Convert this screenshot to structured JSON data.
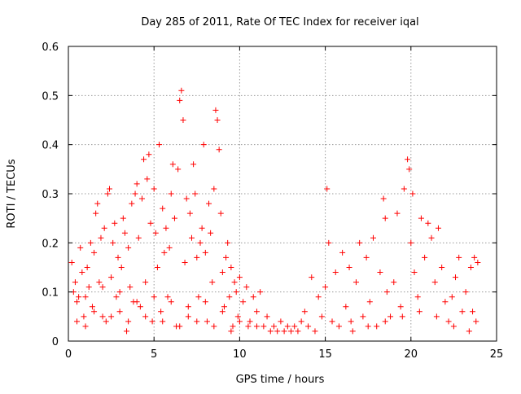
{
  "chart_data": {
    "type": "scatter",
    "title": "Day 285 of 2011, Rate Of TEC Index for receiver iqal",
    "xlabel": "GPS time / hours",
    "ylabel": "ROTI / TECUs",
    "xlim": [
      0,
      25
    ],
    "ylim": [
      0,
      0.6
    ],
    "x_ticks": [
      "0",
      "5",
      "10",
      "15",
      "20",
      "25"
    ],
    "y_ticks": [
      "0",
      "0.1",
      "0.2",
      "0.3",
      "0.4",
      "0.5",
      "0.6"
    ],
    "x_tick_values": [
      0,
      5,
      10,
      15,
      20,
      25
    ],
    "y_tick_values": [
      0,
      0.1,
      0.2,
      0.3,
      0.4,
      0.5,
      0.6
    ],
    "grid": true,
    "marker": "+",
    "marker_color": "#ff0000",
    "series": [
      {
        "points": [
          [
            0.2,
            0.16
          ],
          [
            0.3,
            0.1
          ],
          [
            0.4,
            0.12
          ],
          [
            0.5,
            0.08
          ],
          [
            0.6,
            0.09
          ],
          [
            0.7,
            0.19
          ],
          [
            0.8,
            0.14
          ],
          [
            0.9,
            0.05
          ],
          [
            1.0,
            0.03
          ],
          [
            1.1,
            0.15
          ],
          [
            1.2,
            0.11
          ],
          [
            1.3,
            0.2
          ],
          [
            1.4,
            0.07
          ],
          [
            1.5,
            0.18
          ],
          [
            1.6,
            0.26
          ],
          [
            1.7,
            0.28
          ],
          [
            1.8,
            0.12
          ],
          [
            1.9,
            0.21
          ],
          [
            2.0,
            0.05
          ],
          [
            2.1,
            0.23
          ],
          [
            2.2,
            0.04
          ],
          [
            2.3,
            0.3
          ],
          [
            2.4,
            0.31
          ],
          [
            2.5,
            0.13
          ],
          [
            2.6,
            0.2
          ],
          [
            2.7,
            0.24
          ],
          [
            2.8,
            0.09
          ],
          [
            2.9,
            0.17
          ],
          [
            3.0,
            0.06
          ],
          [
            3.1,
            0.15
          ],
          [
            3.2,
            0.25
          ],
          [
            3.3,
            0.22
          ],
          [
            3.4,
            0.02
          ],
          [
            3.5,
            0.19
          ],
          [
            3.6,
            0.11
          ],
          [
            3.7,
            0.28
          ],
          [
            3.8,
            0.08
          ],
          [
            3.9,
            0.3
          ],
          [
            4.0,
            0.32
          ],
          [
            4.1,
            0.21
          ],
          [
            4.2,
            0.07
          ],
          [
            4.3,
            0.29
          ],
          [
            4.4,
            0.37
          ],
          [
            4.5,
            0.12
          ],
          [
            4.6,
            0.33
          ],
          [
            4.7,
            0.38
          ],
          [
            4.8,
            0.24
          ],
          [
            4.9,
            0.04
          ],
          [
            5.0,
            0.31
          ],
          [
            5.1,
            0.22
          ],
          [
            5.2,
            0.15
          ],
          [
            5.3,
            0.4
          ],
          [
            5.4,
            0.06
          ],
          [
            5.5,
            0.27
          ],
          [
            5.6,
            0.18
          ],
          [
            5.7,
            0.23
          ],
          [
            5.8,
            0.09
          ],
          [
            5.9,
            0.19
          ],
          [
            6.0,
            0.3
          ],
          [
            6.1,
            0.36
          ],
          [
            6.2,
            0.25
          ],
          [
            6.3,
            0.03
          ],
          [
            6.4,
            0.35
          ],
          [
            6.5,
            0.49
          ],
          [
            6.6,
            0.51
          ],
          [
            6.7,
            0.45
          ],
          [
            6.8,
            0.16
          ],
          [
            6.9,
            0.29
          ],
          [
            7.0,
            0.05
          ],
          [
            7.1,
            0.26
          ],
          [
            7.2,
            0.21
          ],
          [
            7.3,
            0.36
          ],
          [
            7.4,
            0.3
          ],
          [
            7.5,
            0.17
          ],
          [
            7.6,
            0.09
          ],
          [
            7.7,
            0.2
          ],
          [
            7.8,
            0.23
          ],
          [
            7.9,
            0.4
          ],
          [
            8.0,
            0.18
          ],
          [
            8.1,
            0.04
          ],
          [
            8.2,
            0.28
          ],
          [
            8.3,
            0.22
          ],
          [
            8.4,
            0.12
          ],
          [
            8.5,
            0.31
          ],
          [
            8.6,
            0.47
          ],
          [
            8.7,
            0.45
          ],
          [
            8.8,
            0.39
          ],
          [
            8.9,
            0.26
          ],
          [
            9.0,
            0.14
          ],
          [
            9.1,
            0.07
          ],
          [
            9.2,
            0.17
          ],
          [
            9.3,
            0.2
          ],
          [
            9.4,
            0.09
          ],
          [
            9.5,
            0.15
          ],
          [
            9.6,
            0.03
          ],
          [
            9.7,
            0.12
          ],
          [
            9.8,
            0.1
          ],
          [
            9.9,
            0.05
          ],
          [
            10.0,
            0.13
          ],
          [
            10.2,
            0.08
          ],
          [
            10.4,
            0.11
          ],
          [
            10.6,
            0.04
          ],
          [
            10.8,
            0.09
          ],
          [
            11.0,
            0.06
          ],
          [
            11.2,
            0.1
          ],
          [
            11.4,
            0.03
          ],
          [
            11.6,
            0.05
          ],
          [
            11.8,
            0.02
          ],
          [
            12.0,
            0.03
          ],
          [
            12.2,
            0.02
          ],
          [
            12.4,
            0.04
          ],
          [
            12.6,
            0.02
          ],
          [
            12.8,
            0.03
          ],
          [
            13.0,
            0.02
          ],
          [
            13.2,
            0.03
          ],
          [
            13.4,
            0.02
          ],
          [
            13.6,
            0.04
          ],
          [
            13.8,
            0.06
          ],
          [
            14.0,
            0.03
          ],
          [
            14.2,
            0.13
          ],
          [
            14.4,
            0.02
          ],
          [
            14.6,
            0.09
          ],
          [
            14.8,
            0.05
          ],
          [
            15.0,
            0.11
          ],
          [
            15.1,
            0.31
          ],
          [
            15.2,
            0.2
          ],
          [
            15.4,
            0.04
          ],
          [
            15.6,
            0.14
          ],
          [
            15.8,
            0.03
          ],
          [
            16.0,
            0.18
          ],
          [
            16.2,
            0.07
          ],
          [
            16.4,
            0.15
          ],
          [
            16.6,
            0.02
          ],
          [
            16.8,
            0.12
          ],
          [
            17.0,
            0.2
          ],
          [
            17.2,
            0.05
          ],
          [
            17.4,
            0.17
          ],
          [
            17.6,
            0.08
          ],
          [
            17.8,
            0.21
          ],
          [
            18.0,
            0.03
          ],
          [
            18.2,
            0.14
          ],
          [
            18.4,
            0.29
          ],
          [
            18.5,
            0.25
          ],
          [
            18.6,
            0.1
          ],
          [
            18.8,
            0.05
          ],
          [
            19.0,
            0.12
          ],
          [
            19.2,
            0.26
          ],
          [
            19.4,
            0.07
          ],
          [
            19.6,
            0.31
          ],
          [
            19.8,
            0.37
          ],
          [
            19.9,
            0.35
          ],
          [
            20.0,
            0.2
          ],
          [
            20.1,
            0.3
          ],
          [
            20.2,
            0.14
          ],
          [
            20.4,
            0.09
          ],
          [
            20.6,
            0.25
          ],
          [
            20.8,
            0.17
          ],
          [
            21.0,
            0.24
          ],
          [
            21.2,
            0.21
          ],
          [
            21.4,
            0.12
          ],
          [
            21.6,
            0.23
          ],
          [
            21.8,
            0.15
          ],
          [
            22.0,
            0.08
          ],
          [
            22.2,
            0.04
          ],
          [
            22.4,
            0.09
          ],
          [
            22.6,
            0.13
          ],
          [
            22.8,
            0.17
          ],
          [
            23.0,
            0.06
          ],
          [
            23.2,
            0.1
          ],
          [
            23.4,
            0.02
          ],
          [
            23.5,
            0.15
          ],
          [
            23.6,
            0.06
          ],
          [
            23.7,
            0.17
          ],
          [
            23.8,
            0.04
          ],
          [
            23.9,
            0.16
          ],
          [
            0.5,
            0.04
          ],
          [
            1.0,
            0.09
          ],
          [
            1.5,
            0.06
          ],
          [
            2.0,
            0.11
          ],
          [
            2.5,
            0.05
          ],
          [
            3.0,
            0.1
          ],
          [
            3.5,
            0.04
          ],
          [
            4.0,
            0.08
          ],
          [
            4.5,
            0.05
          ],
          [
            5.0,
            0.09
          ],
          [
            5.5,
            0.04
          ],
          [
            6.0,
            0.08
          ],
          [
            6.5,
            0.03
          ],
          [
            7.0,
            0.07
          ],
          [
            7.5,
            0.04
          ],
          [
            8.0,
            0.08
          ],
          [
            8.5,
            0.03
          ],
          [
            9.0,
            0.06
          ],
          [
            9.5,
            0.02
          ],
          [
            10.0,
            0.04
          ],
          [
            10.5,
            0.03
          ],
          [
            11.0,
            0.03
          ],
          [
            16.5,
            0.04
          ],
          [
            17.5,
            0.03
          ],
          [
            18.5,
            0.04
          ],
          [
            19.5,
            0.05
          ],
          [
            20.5,
            0.06
          ],
          [
            21.5,
            0.05
          ],
          [
            22.5,
            0.03
          ]
        ]
      }
    ]
  }
}
